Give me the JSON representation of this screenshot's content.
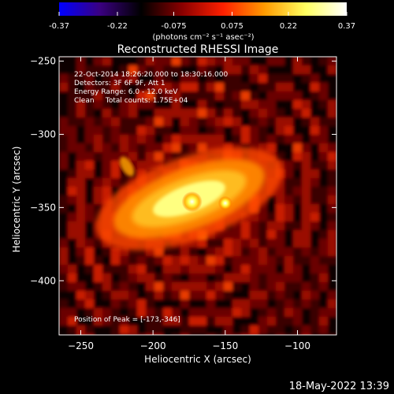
{
  "colorbar": {
    "ticks": [
      "-0.37",
      "-0.22",
      "-0.075",
      "0.075",
      "0.22",
      "0.37"
    ],
    "range": [
      -0.37,
      0.37
    ],
    "units": "(photons cm⁻² s⁻¹ asec⁻²)",
    "colormap": [
      "#0000ff",
      "#3a0080",
      "#000000",
      "#8a0000",
      "#ff2000",
      "#ff9a00",
      "#ffff60",
      "#ffffff"
    ]
  },
  "chart_data": {
    "type": "heatmap",
    "title": "Reconstructed RHESSI Image",
    "xlabel": "Heliocentric X (arcsec)",
    "ylabel": "Heliocentric Y (arcsec)",
    "xlim": [
      -265,
      -73
    ],
    "ylim": [
      -437,
      -247
    ],
    "xticks": [
      -250,
      -200,
      -150,
      -100
    ],
    "yticks": [
      -250,
      -300,
      -350,
      -400
    ],
    "annotations": [
      "22-Oct-2014 18:26:20.000 to 18:30:16.000",
      "Detectors: 3F 6F 9F, Att 1",
      "Energy Range: 6.0 - 12.0 keV",
      "Clean     Total counts: 1.75E+04"
    ],
    "peak_label": "Position of Peak = [-173,-346]",
    "peak": [
      -173,
      -346
    ],
    "source": {
      "center": [
        -175,
        -344
      ],
      "extent_arcsec": [
        110,
        22
      ],
      "tilt_deg": -20
    }
  },
  "footer": {
    "date": "18-May-2022 13:39"
  }
}
